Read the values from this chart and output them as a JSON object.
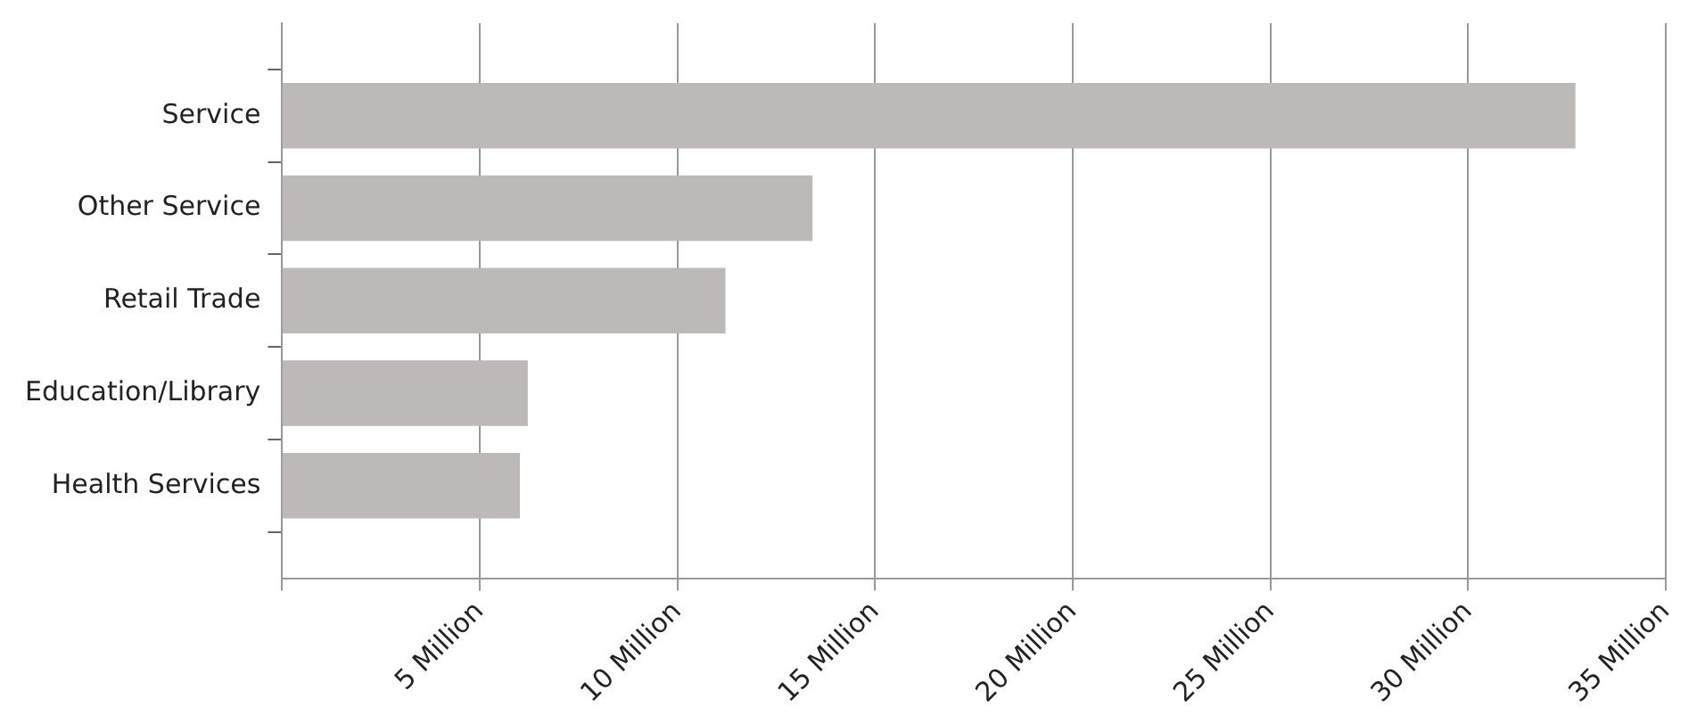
{
  "chart_data": {
    "type": "bar",
    "orientation": "horizontal",
    "categories": [
      "Service",
      "Other Service",
      "Retail Trade",
      "Education/Library",
      "Health Services"
    ],
    "values": [
      32.7,
      13.4,
      11.2,
      6.2,
      6.0
    ],
    "color": "#bdb9b8",
    "xlim": [
      0,
      35
    ],
    "xticks": [
      {
        "value": 0,
        "label": null
      },
      {
        "value": 5,
        "label": "5 Million"
      },
      {
        "value": 10,
        "label": "10 Million"
      },
      {
        "value": 15,
        "label": "15 Million"
      },
      {
        "value": 20,
        "label": "20 Million"
      },
      {
        "value": 25,
        "label": "25 Million"
      },
      {
        "value": 30,
        "label": "30 Million"
      },
      {
        "value": 35,
        "label": "35 Million"
      }
    ],
    "grid": "x"
  }
}
